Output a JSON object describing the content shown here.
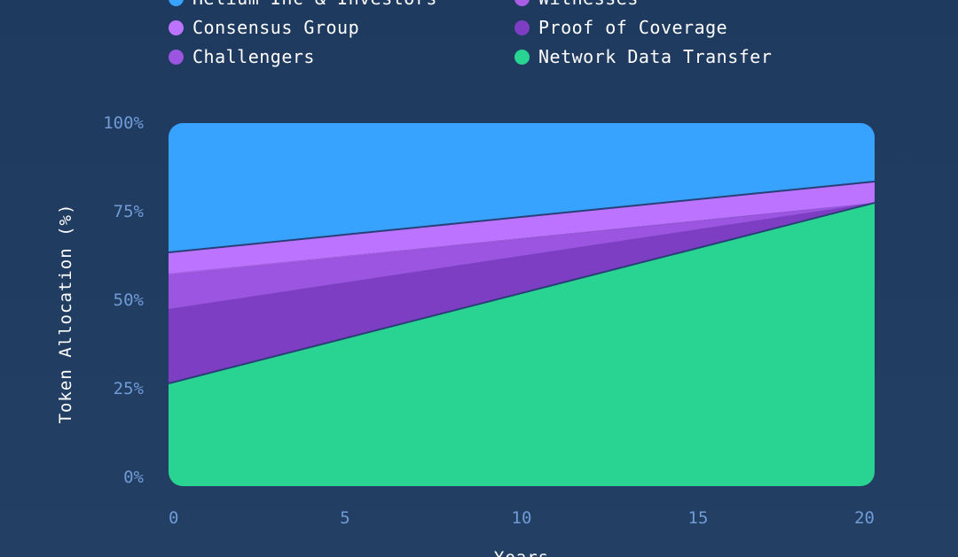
{
  "chart_data": {
    "type": "area",
    "stacked": true,
    "xlabel": "Years",
    "ylabel": "Token Allocation (%)",
    "xlim": [
      0,
      20
    ],
    "ylim": [
      0,
      100
    ],
    "x": [
      0,
      20
    ],
    "x_ticks": [
      "0",
      "5",
      "10",
      "15",
      "20"
    ],
    "y_ticks": [
      "0%",
      "25%",
      "50%",
      "75%",
      "100%"
    ],
    "legend_placement": "top",
    "series": [
      {
        "name": "Network Data Transfer",
        "color": "#29d391",
        "values": [
          29,
          80
        ]
      },
      {
        "name": "Proof of Coverage",
        "color": "#7e3ec4",
        "values": [
          21,
          0
        ]
      },
      {
        "name": "Challengers",
        "color": "#9b55e0",
        "values": [
          9.5,
          0
        ]
      },
      {
        "name": "Witnesses",
        "color": "#a85de6",
        "values": [
          0.5,
          0
        ]
      },
      {
        "name": "Consensus Group",
        "color": "#bc73ff",
        "values": [
          6,
          6
        ]
      },
      {
        "name": "Helium Inc & Investors",
        "color": "#38a2ff",
        "values": [
          34,
          14
        ]
      }
    ],
    "legend": [
      {
        "name": "Helium Inc & Investors",
        "color": "#38a2ff"
      },
      {
        "name": "Witnesses",
        "color": "#a85de6"
      },
      {
        "name": "Consensus Group",
        "color": "#bc73ff"
      },
      {
        "name": "Proof of Coverage",
        "color": "#7e3ec4"
      },
      {
        "name": "Challengers",
        "color": "#9b55e0"
      },
      {
        "name": "Network Data Transfer",
        "color": "#29d391"
      }
    ]
  }
}
